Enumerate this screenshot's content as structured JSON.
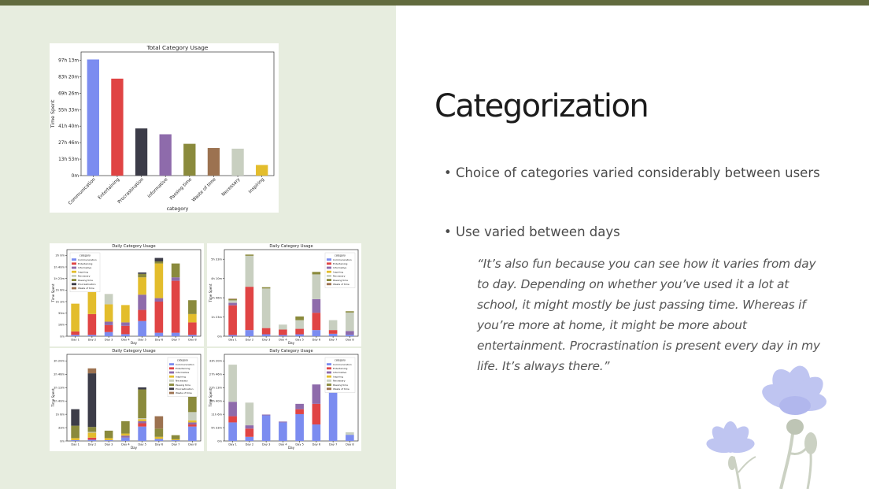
{
  "slide": {
    "title": "Categorization",
    "bullets": [
      "Choice of categories varied considerably between users",
      "Use varied between days"
    ],
    "bullet_marker": "•",
    "quote": "“It’s also fun because you can see how it varies from day to day. Depending on whether you’ve used it a lot at school, it might mostly be just passing time. Whereas if you’re more at home, it might be more about entertainment. Procrastination is present every day in my life. It’s always there.”",
    "colors": {
      "top_bar": "#626b3e",
      "left_panel": "#e7eddf"
    },
    "decoration": "cornflower-illustration"
  },
  "chart_data": [
    {
      "type": "bar",
      "title": "Total Category Usage",
      "xlabel": "category",
      "ylabel": "Time Spent",
      "yticks": [
        "0m",
        "13h 53m",
        "27h 46m",
        "41h 40m",
        "55h 33m",
        "69h 26m",
        "83h 20m",
        "97h 13m"
      ],
      "ylim": [
        0,
        5833
      ],
      "categories": [
        "Communication",
        "Entertaining",
        "Procrastination",
        "informative",
        "Passing time",
        "Waste of time",
        "Necessary",
        "Inspiring"
      ],
      "values": [
        5480,
        4575,
        2225,
        1950,
        1500,
        1300,
        1270,
        500
      ],
      "colors": [
        "#7b8cf0",
        "#e04444",
        "#3c3c48",
        "#8e6bab",
        "#8a8a3c",
        "#9c7250",
        "#c8cfc0",
        "#e3bd2c"
      ]
    },
    {
      "type": "bar",
      "stacked": true,
      "title": "Daily Category Usage",
      "xlabel": "Day",
      "ylabel": "Time Spent",
      "yticks": [
        "0m",
        "16m",
        "33m",
        "1h 3m",
        "1h 6m",
        "1h 23m",
        "1h 40m",
        "2h 0m"
      ],
      "ylim": [
        0,
        125
      ],
      "legend_title": "category",
      "legend": [
        "Communication",
        "Entertaining",
        "Informative",
        "Inspiring",
        "Necessary",
        "Passing time",
        "Procrastination",
        "Waste of time"
      ],
      "categories": [
        "Day 1",
        "Day 2",
        "Day 3",
        "Day 4",
        "Day 5",
        "Day 6",
        "Day 7",
        "Day 8"
      ],
      "series": [
        {
          "name": "Communication",
          "values": [
            2,
            2,
            6,
            3,
            22,
            5,
            5,
            2
          ]
        },
        {
          "name": "Entertaining",
          "values": [
            5,
            30,
            10,
            12,
            16,
            45,
            75,
            18
          ]
        },
        {
          "name": "Informative",
          "values": [
            0,
            0,
            5,
            5,
            22,
            5,
            5,
            0
          ]
        },
        {
          "name": "Inspiring",
          "values": [
            40,
            40,
            25,
            25,
            25,
            50,
            0,
            12
          ]
        },
        {
          "name": "Necessary",
          "values": [
            0,
            0,
            15,
            0,
            0,
            0,
            0,
            0
          ]
        },
        {
          "name": "Passing time",
          "values": [
            0,
            0,
            0,
            0,
            5,
            3,
            20,
            20
          ]
        },
        {
          "name": "Procrastination",
          "values": [
            0,
            0,
            0,
            0,
            2,
            5,
            0,
            0
          ]
        },
        {
          "name": "Waste of time",
          "values": [
            0,
            0,
            0,
            0,
            0,
            0,
            0,
            0
          ]
        }
      ],
      "colors": [
        "#7b8cf0",
        "#e04444",
        "#8e6bab",
        "#e3bd2c",
        "#c8cfc0",
        "#8a8a3c",
        "#3c3c48",
        "#9c7250"
      ]
    },
    {
      "type": "bar",
      "stacked": true,
      "title": "Daily Category Usage",
      "xlabel": "Day",
      "ylabel": "Time Spent",
      "yticks": [
        "0m",
        "1h 23m",
        "2h 46m",
        "4h 10m",
        "5h 33m"
      ],
      "ylim": [
        0,
        350
      ],
      "legend_title": "category",
      "legend": [
        "Communication",
        "Entertaining",
        "Informative",
        "Inspiring",
        "Necessary",
        "Passing time",
        "Waste of time"
      ],
      "categories": [
        "Day 1",
        "Day 2",
        "Day 3",
        "Day 4",
        "Day 5",
        "Day 6",
        "Day 7",
        "Day 8"
      ],
      "series": [
        {
          "name": "Communication",
          "values": [
            5,
            25,
            8,
            5,
            8,
            25,
            10,
            6
          ]
        },
        {
          "name": "Entertaining",
          "values": [
            120,
            175,
            25,
            22,
            22,
            70,
            15,
            0
          ]
        },
        {
          "name": "Informative",
          "values": [
            10,
            0,
            0,
            0,
            0,
            55,
            0,
            15
          ]
        },
        {
          "name": "Inspiring",
          "values": [
            0,
            0,
            0,
            0,
            0,
            0,
            0,
            0
          ]
        },
        {
          "name": "Necessary",
          "values": [
            10,
            125,
            160,
            20,
            35,
            100,
            40,
            75
          ]
        },
        {
          "name": "Passing time",
          "values": [
            5,
            5,
            5,
            0,
            15,
            10,
            0,
            5
          ]
        },
        {
          "name": "Waste of time",
          "values": [
            2,
            0,
            0,
            0,
            0,
            0,
            0,
            0
          ]
        }
      ],
      "colors": [
        "#7b8cf0",
        "#e04444",
        "#8e6bab",
        "#e3bd2c",
        "#c8cfc0",
        "#8a8a3c",
        "#9c7250"
      ]
    },
    {
      "type": "bar",
      "stacked": true,
      "title": "Daily Category Usage",
      "xlabel": "Day",
      "ylabel": "Time Spent",
      "yticks": [
        "0m",
        "33m",
        "1h 6m",
        "1h 40m",
        "2h 13m",
        "2h 46m",
        "3h 20m"
      ],
      "ylim": [
        0,
        210
      ],
      "legend_title": "category",
      "legend": [
        "Communication",
        "Entertaining",
        "Informative",
        "Inspiring",
        "Necessary",
        "Passing time",
        "Procrastination",
        "Waste of time"
      ],
      "categories": [
        "Day 1",
        "Day 2",
        "Day 3",
        "Day 4",
        "Day 5",
        "Day 6",
        "Day 7",
        "Day 8"
      ],
      "series": [
        {
          "name": "Communication",
          "values": [
            2,
            3,
            2,
            8,
            35,
            5,
            2,
            35
          ]
        },
        {
          "name": "Entertaining",
          "values": [
            0,
            5,
            0,
            0,
            8,
            0,
            0,
            5
          ]
        },
        {
          "name": "Informative",
          "values": [
            0,
            0,
            0,
            5,
            5,
            0,
            0,
            5
          ]
        },
        {
          "name": "Inspiring",
          "values": [
            5,
            12,
            5,
            5,
            5,
            5,
            2,
            5
          ]
        },
        {
          "name": "Necessary",
          "values": [
            0,
            2,
            0,
            0,
            2,
            0,
            0,
            20
          ]
        },
        {
          "name": "Passing time",
          "values": [
            30,
            12,
            18,
            30,
            70,
            20,
            10,
            75
          ]
        },
        {
          "name": "Procrastination",
          "values": [
            40,
            130,
            0,
            0,
            5,
            0,
            0,
            0
          ]
        },
        {
          "name": "Waste of time",
          "values": [
            0,
            12,
            0,
            0,
            0,
            30,
            0,
            55
          ]
        }
      ],
      "colors": [
        "#7b8cf0",
        "#e04444",
        "#8e6bab",
        "#e3bd2c",
        "#c8cfc0",
        "#8a8a3c",
        "#3c3c48",
        "#9c7250"
      ]
    },
    {
      "type": "bar",
      "stacked": true,
      "title": "Daily Category Usage",
      "xlabel": "Day",
      "ylabel": "Time Spent",
      "yticks": [
        "0m",
        "5h 33m",
        "11h 6m",
        "16h 40m",
        "22h 13m",
        "27h 46m",
        "33h 20m"
      ],
      "ylim": [
        0,
        2100
      ],
      "legend_title": "category",
      "legend": [
        "Communication",
        "Entertaining",
        "Informative",
        "Inspiring",
        "Necessary",
        "Passing time",
        "Waste of time"
      ],
      "categories": [
        "Day 1",
        "Day 2",
        "Day 3",
        "Day 4",
        "Day 5",
        "Day 6",
        "Day 7",
        "Day 8"
      ],
      "series": [
        {
          "name": "Communication",
          "values": [
            450,
            100,
            620,
            450,
            650,
            400,
            1550,
            150
          ]
        },
        {
          "name": "Entertaining",
          "values": [
            150,
            200,
            0,
            0,
            120,
            500,
            70,
            0
          ]
        },
        {
          "name": "Informative",
          "values": [
            350,
            80,
            20,
            20,
            130,
            470,
            200,
            0
          ]
        },
        {
          "name": "Inspiring",
          "values": [
            0,
            0,
            0,
            0,
            0,
            0,
            0,
            0
          ]
        },
        {
          "name": "Necessary",
          "values": [
            900,
            550,
            0,
            0,
            0,
            0,
            150,
            60
          ]
        },
        {
          "name": "Passing time",
          "values": [
            0,
            0,
            0,
            0,
            0,
            0,
            0,
            0
          ]
        },
        {
          "name": "Waste of time",
          "values": [
            0,
            0,
            0,
            0,
            0,
            0,
            0,
            0
          ]
        }
      ],
      "colors": [
        "#7b8cf0",
        "#e04444",
        "#8e6bab",
        "#e3bd2c",
        "#c8cfc0",
        "#8a8a3c",
        "#9c7250"
      ]
    }
  ]
}
